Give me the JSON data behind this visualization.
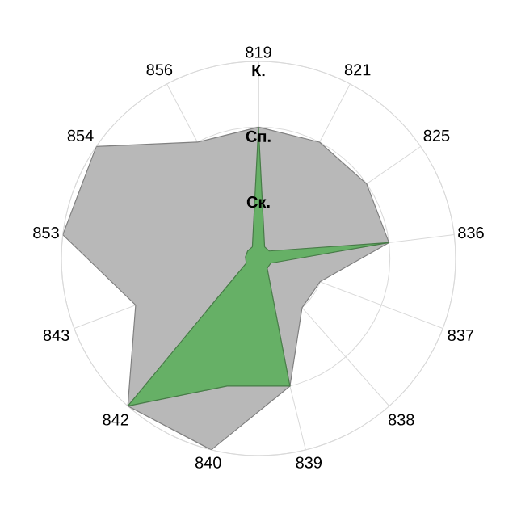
{
  "chart_data": {
    "type": "radar",
    "categories": [
      "819",
      "821",
      "825",
      "836",
      "837",
      "838",
      "839",
      "840",
      "842",
      "843",
      "853",
      "854",
      "856"
    ],
    "ylim": [
      0,
      3
    ],
    "yticks": [
      {
        "value": 1,
        "label": "Ск."
      },
      {
        "value": 2,
        "label": "Сп."
      },
      {
        "value": 3,
        "label": "К."
      }
    ],
    "grid": true,
    "marker": "none",
    "series": [
      {
        "color": "#b8b8b8",
        "values": [
          2.0,
          2.0,
          2.0,
          2.0,
          1.0,
          1.0,
          2.0,
          3.0,
          3.0,
          2.0,
          3.0,
          3.0,
          2.0
        ]
      },
      {
        "color": "#66b066",
        "values": [
          2.0,
          0.2,
          0.2,
          2.0,
          0.2,
          0.2,
          2.0,
          2.0,
          3.0,
          0.2,
          0.2,
          0.2,
          0.2
        ]
      }
    ]
  }
}
